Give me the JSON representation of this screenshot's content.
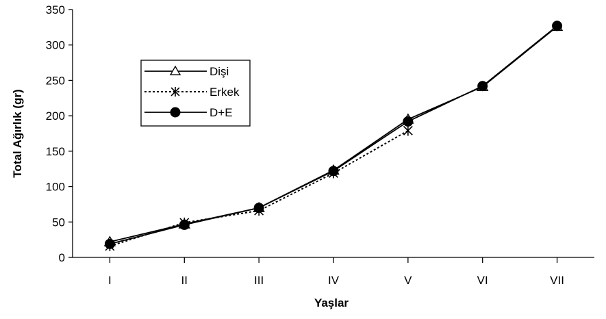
{
  "chart_data": {
    "type": "line",
    "title": "",
    "xlabel": "Yaşlar",
    "ylabel": "Total Ağırlık (gr)",
    "categories": [
      "I",
      "II",
      "III",
      "IV",
      "V",
      "VI",
      "VII"
    ],
    "ylim": [
      0,
      350
    ],
    "yticks": [
      0,
      50,
      100,
      150,
      200,
      250,
      300,
      350
    ],
    "grid": false,
    "legend_position": "upper-left",
    "series": [
      {
        "name": "Dişi",
        "marker": "triangle",
        "line": "solid",
        "color": "#000000",
        "values": [
          22,
          47,
          70,
          123,
          195,
          241,
          326
        ]
      },
      {
        "name": "Erkek",
        "marker": "asterisk",
        "line": "dotted",
        "color": "#000000",
        "values": [
          16,
          49,
          66,
          119,
          179,
          null,
          null
        ]
      },
      {
        "name": "D+E",
        "marker": "circle",
        "line": "solid",
        "color": "#000000",
        "values": [
          19,
          46,
          70,
          122,
          192,
          242,
          327
        ]
      }
    ]
  }
}
